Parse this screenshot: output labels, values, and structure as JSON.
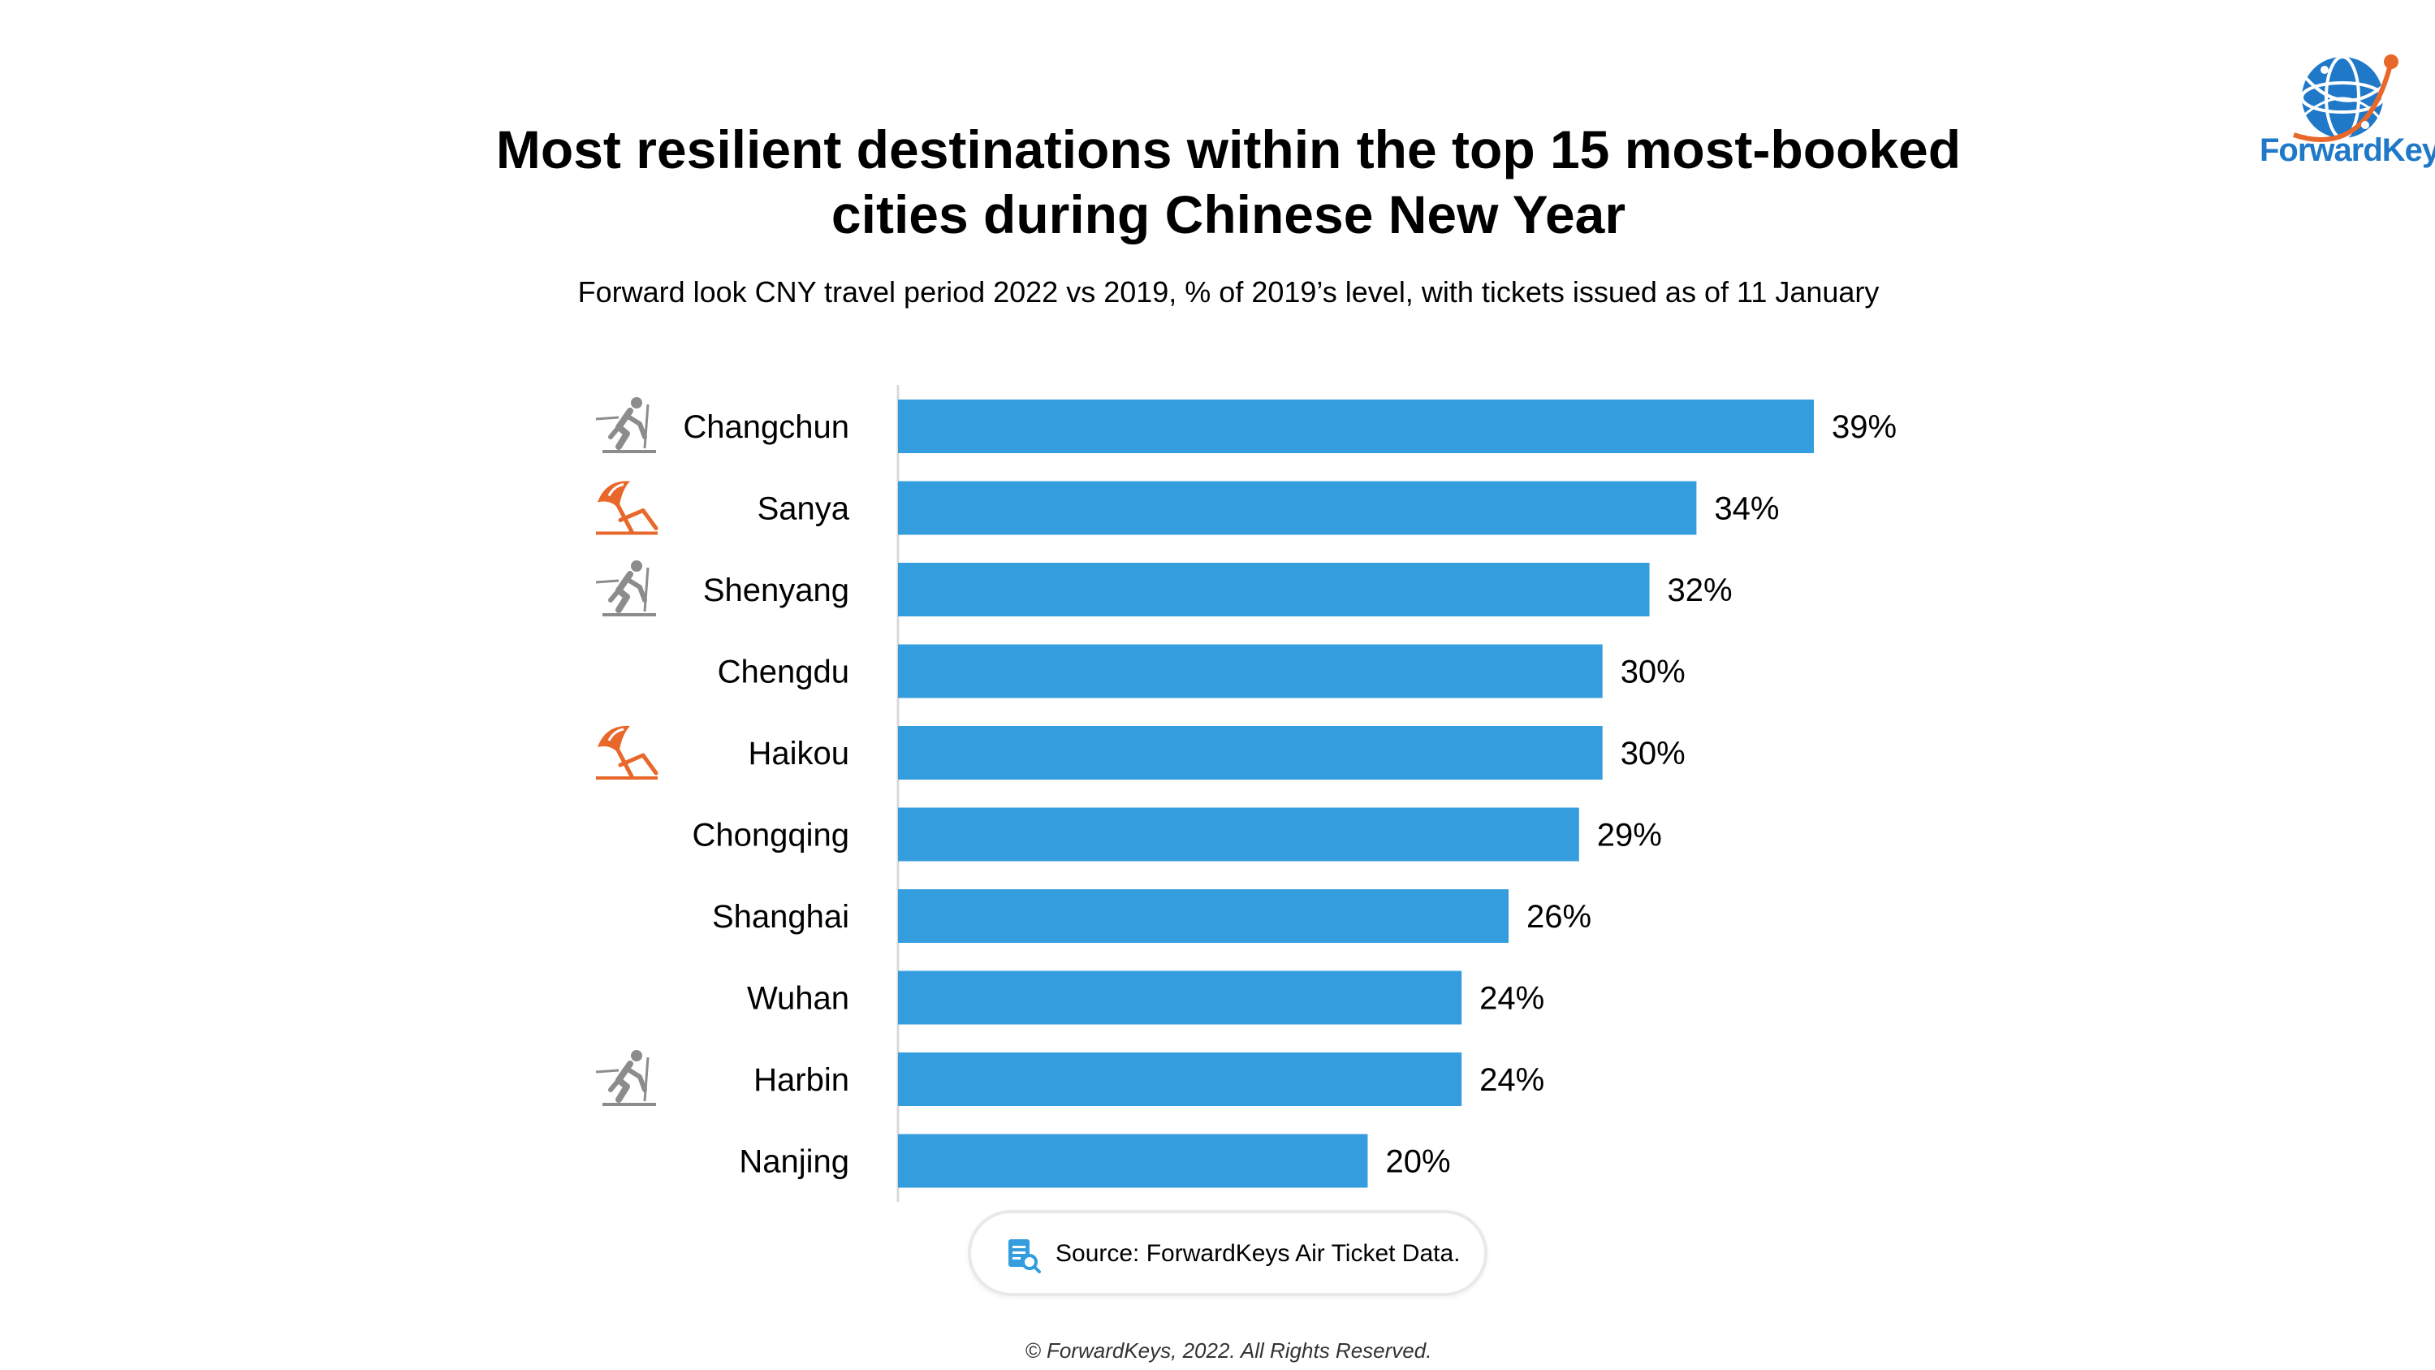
{
  "header": {
    "title_line1": "Most resilient destinations within the top 15 most-booked",
    "title_line2": "cities during Chinese New Year",
    "subtitle": "Forward look CNY travel period 2022 vs 2019, % of 2019’s level, with tickets issued as of 11 January"
  },
  "logo": {
    "text": "ForwardKeys",
    "icon": "globe-logo-icon",
    "color": "#1f78c8"
  },
  "chart_data": {
    "type": "bar",
    "orientation": "horizontal",
    "categories": [
      "Changchun",
      "Sanya",
      "Shenyang",
      "Chengdu",
      "Haikou",
      "Chongqing",
      "Shanghai",
      "Wuhan",
      "Harbin",
      "Nanjing"
    ],
    "values": [
      39,
      34,
      32,
      30,
      30,
      29,
      26,
      24,
      24,
      20
    ],
    "value_labels": [
      "39%",
      "34%",
      "32%",
      "30%",
      "30%",
      "29%",
      "26%",
      "24%",
      "24%",
      "20%"
    ],
    "category_icons": [
      "skier-icon",
      "beach-umbrella-icon",
      "skier-icon",
      "",
      "beach-umbrella-icon",
      "",
      "",
      "",
      "skier-icon",
      ""
    ],
    "unit": "%",
    "xlim": [
      0,
      39
    ],
    "bar_color": "#349ddd",
    "grid": false,
    "legend": "none"
  },
  "source": {
    "text": "Source: ForwardKeys Air Ticket Data.",
    "icon": "document-search-icon"
  },
  "footer": {
    "copyright": "© ForwardKeys, 2022. All Rights Reserved."
  }
}
